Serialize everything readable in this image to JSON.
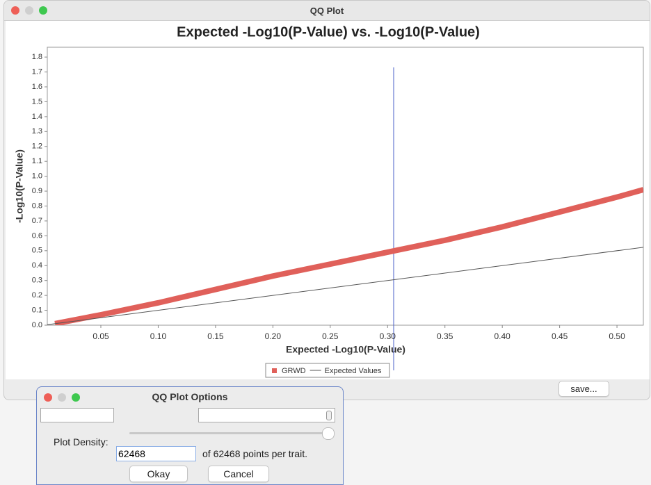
{
  "window": {
    "title": "QQ Plot",
    "save_button": "save..."
  },
  "chart_data": {
    "type": "line",
    "title": "Expected -Log10(P-Value) vs. -Log10(P-Value)",
    "x_label": "Expected -Log10(P-Value)",
    "y_label": "-Log10(P-Value)",
    "xlim": [
      0.0033,
      0.523
    ],
    "ylim": [
      0,
      1.866
    ],
    "xticks": [
      0.05,
      {
        "value": 0.1,
        "label": "0.10"
      },
      0.15,
      {
        "value": 0.2,
        "label": "0.20"
      },
      0.25,
      {
        "value": 0.3,
        "label": "0.30"
      },
      0.35,
      {
        "value": 0.4,
        "label": "0.40"
      },
      0.45,
      {
        "value": 0.5,
        "label": "0.50"
      }
    ],
    "yticks": [
      {
        "value": 0,
        "label": "0.0"
      },
      0.1,
      0.2,
      0.3,
      0.4,
      0.5,
      0.6,
      0.7,
      0.8,
      0.9,
      {
        "value": 1,
        "label": "1.0"
      },
      1.1,
      1.2,
      1.3,
      1.4,
      1.5,
      1.6,
      1.7,
      1.8
    ],
    "grid": false,
    "series": [
      {
        "name": "GRWD",
        "color": "#e0605a",
        "marker": "square",
        "x": [
          0.01,
          0.05,
          0.1,
          0.15,
          0.2,
          0.25,
          0.3,
          0.35,
          0.4,
          0.45,
          0.5,
          0.523
        ],
        "values": [
          0.01,
          0.07,
          0.15,
          0.24,
          0.33,
          0.41,
          0.49,
          0.57,
          0.66,
          0.76,
          0.86,
          0.91
        ]
      },
      {
        "name": "Expected Values",
        "color": "#555555",
        "marker": "line",
        "x": [
          0.0033,
          0.523
        ],
        "values": [
          0.0033,
          0.523
        ]
      }
    ]
  },
  "dialog": {
    "title": "QQ Plot Options",
    "density_label": "Plot Density:",
    "density_value": "62468",
    "density_note": "of 62468 points per trait.",
    "ok_button": "Okay",
    "cancel_button": "Cancel"
  }
}
